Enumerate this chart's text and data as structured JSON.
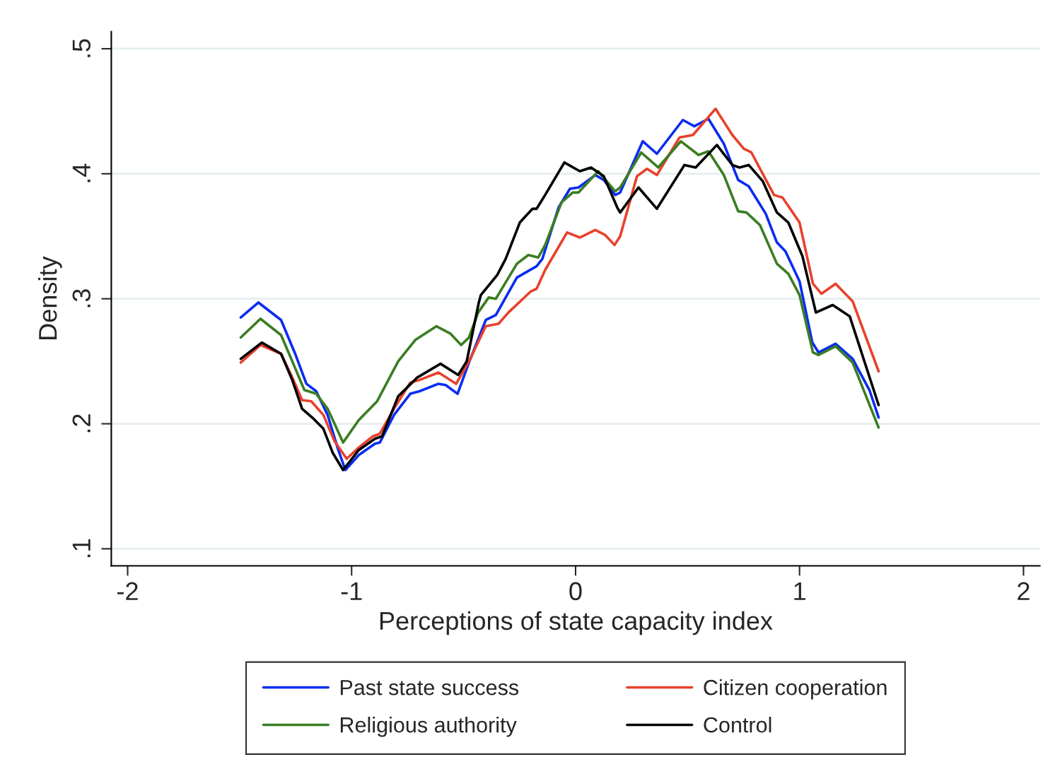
{
  "chart_data": {
    "type": "line",
    "xlabel": "Perceptions of state capacity index",
    "ylabel": "Density",
    "xlim": [
      -2.073,
      2.073
    ],
    "ylim": [
      0.0864,
      0.5136
    ],
    "xticks": [
      -2,
      -1,
      0,
      1,
      2
    ],
    "yticks": [
      {
        "value": 0.1,
        "label": ".1"
      },
      {
        "value": 0.2,
        "label": ".2"
      },
      {
        "value": 0.3,
        "label": ".3"
      },
      {
        "value": 0.4,
        "label": ".4"
      },
      {
        "value": 0.5,
        "label": ".5"
      }
    ],
    "grid": "y",
    "legend": "bottom",
    "marker": "none",
    "line_style": "solid",
    "series": [
      {
        "name": "Past state success",
        "color": "#0a2cf0",
        "x": [
          -1.495,
          -1.416,
          -1.315,
          -1.252,
          -1.202,
          -1.158,
          -1.107,
          -1.063,
          -1.028,
          -0.968,
          -0.896,
          -0.874,
          -0.811,
          -0.738,
          -0.697,
          -0.612,
          -0.58,
          -0.527,
          -0.476,
          -0.401,
          -0.356,
          -0.262,
          -0.174,
          -0.148,
          -0.076,
          -0.025,
          0.013,
          0.088,
          0.126,
          0.177,
          0.199,
          0.3,
          0.363,
          0.479,
          0.53,
          0.593,
          0.662,
          0.726,
          0.773,
          0.849,
          0.899,
          0.937,
          1.0,
          1.057,
          1.085,
          1.161,
          1.237,
          1.312,
          1.353
        ],
        "values": [
          0.285,
          0.297,
          0.283,
          0.256,
          0.232,
          0.226,
          0.207,
          0.181,
          0.163,
          0.175,
          0.184,
          0.185,
          0.207,
          0.224,
          0.226,
          0.232,
          0.231,
          0.224,
          0.249,
          0.283,
          0.287,
          0.317,
          0.326,
          0.332,
          0.373,
          0.388,
          0.389,
          0.399,
          0.395,
          0.383,
          0.385,
          0.426,
          0.416,
          0.443,
          0.438,
          0.444,
          0.424,
          0.395,
          0.39,
          0.368,
          0.345,
          0.338,
          0.314,
          0.265,
          0.257,
          0.264,
          0.252,
          0.227,
          0.205
        ]
      },
      {
        "name": "Citizen cooperation",
        "color": "#e8412c",
        "x": [
          -1.495,
          -1.407,
          -1.315,
          -1.265,
          -1.221,
          -1.18,
          -1.126,
          -1.076,
          -1.022,
          -0.968,
          -0.905,
          -0.874,
          -0.811,
          -0.738,
          -0.697,
          -0.612,
          -0.533,
          -0.476,
          -0.401,
          -0.344,
          -0.3,
          -0.199,
          -0.174,
          -0.136,
          -0.038,
          0.019,
          0.088,
          0.132,
          0.174,
          0.199,
          0.274,
          0.319,
          0.363,
          0.464,
          0.524,
          0.625,
          0.7,
          0.751,
          0.785,
          0.886,
          0.924,
          1.0,
          1.06,
          1.098,
          1.161,
          1.237,
          1.353
        ],
        "values": [
          0.249,
          0.263,
          0.256,
          0.237,
          0.219,
          0.218,
          0.207,
          0.186,
          0.172,
          0.181,
          0.19,
          0.192,
          0.212,
          0.233,
          0.235,
          0.241,
          0.232,
          0.25,
          0.278,
          0.28,
          0.289,
          0.306,
          0.308,
          0.323,
          0.353,
          0.349,
          0.355,
          0.351,
          0.343,
          0.35,
          0.398,
          0.404,
          0.399,
          0.429,
          0.431,
          0.452,
          0.431,
          0.42,
          0.417,
          0.383,
          0.381,
          0.361,
          0.312,
          0.304,
          0.312,
          0.298,
          0.242
        ]
      },
      {
        "name": "Religious authority",
        "color": "#3a7d22",
        "x": [
          -1.495,
          -1.407,
          -1.315,
          -1.265,
          -1.211,
          -1.158,
          -1.107,
          -1.038,
          -0.968,
          -0.886,
          -0.792,
          -0.716,
          -0.621,
          -0.558,
          -0.511,
          -0.476,
          -0.435,
          -0.388,
          -0.356,
          -0.262,
          -0.211,
          -0.167,
          -0.136,
          -0.063,
          -0.013,
          0.013,
          0.101,
          0.177,
          0.199,
          0.293,
          0.369,
          0.47,
          0.549,
          0.593,
          0.662,
          0.726,
          0.763,
          0.823,
          0.899,
          0.95,
          1.0,
          1.06,
          1.085,
          1.161,
          1.237,
          1.353
        ],
        "values": [
          0.269,
          0.284,
          0.271,
          0.25,
          0.227,
          0.224,
          0.212,
          0.185,
          0.203,
          0.218,
          0.25,
          0.267,
          0.278,
          0.272,
          0.263,
          0.269,
          0.289,
          0.301,
          0.3,
          0.328,
          0.335,
          0.333,
          0.343,
          0.377,
          0.385,
          0.385,
          0.402,
          0.386,
          0.389,
          0.417,
          0.405,
          0.426,
          0.415,
          0.418,
          0.399,
          0.37,
          0.369,
          0.359,
          0.328,
          0.32,
          0.303,
          0.257,
          0.255,
          0.262,
          0.249,
          0.197
        ]
      },
      {
        "name": "Control",
        "color": "#000000",
        "x": [
          -1.495,
          -1.401,
          -1.315,
          -1.265,
          -1.221,
          -1.17,
          -1.126,
          -1.085,
          -1.038,
          -0.968,
          -0.896,
          -0.864,
          -0.792,
          -0.707,
          -0.603,
          -0.524,
          -0.486,
          -0.432,
          -0.423,
          -0.35,
          -0.312,
          -0.249,
          -0.192,
          -0.174,
          -0.136,
          -0.05,
          0.019,
          0.069,
          0.126,
          0.186,
          0.199,
          0.281,
          0.363,
          0.486,
          0.536,
          0.631,
          0.7,
          0.732,
          0.773,
          0.836,
          0.899,
          0.95,
          1.013,
          1.073,
          1.148,
          1.224,
          1.353
        ],
        "values": [
          0.252,
          0.265,
          0.256,
          0.235,
          0.212,
          0.204,
          0.196,
          0.177,
          0.163,
          0.179,
          0.188,
          0.19,
          0.222,
          0.237,
          0.248,
          0.239,
          0.25,
          0.297,
          0.303,
          0.319,
          0.332,
          0.361,
          0.372,
          0.372,
          0.383,
          0.409,
          0.402,
          0.405,
          0.398,
          0.373,
          0.369,
          0.389,
          0.372,
          0.407,
          0.405,
          0.423,
          0.407,
          0.405,
          0.407,
          0.394,
          0.369,
          0.361,
          0.334,
          0.289,
          0.295,
          0.286,
          0.215
        ]
      }
    ]
  }
}
